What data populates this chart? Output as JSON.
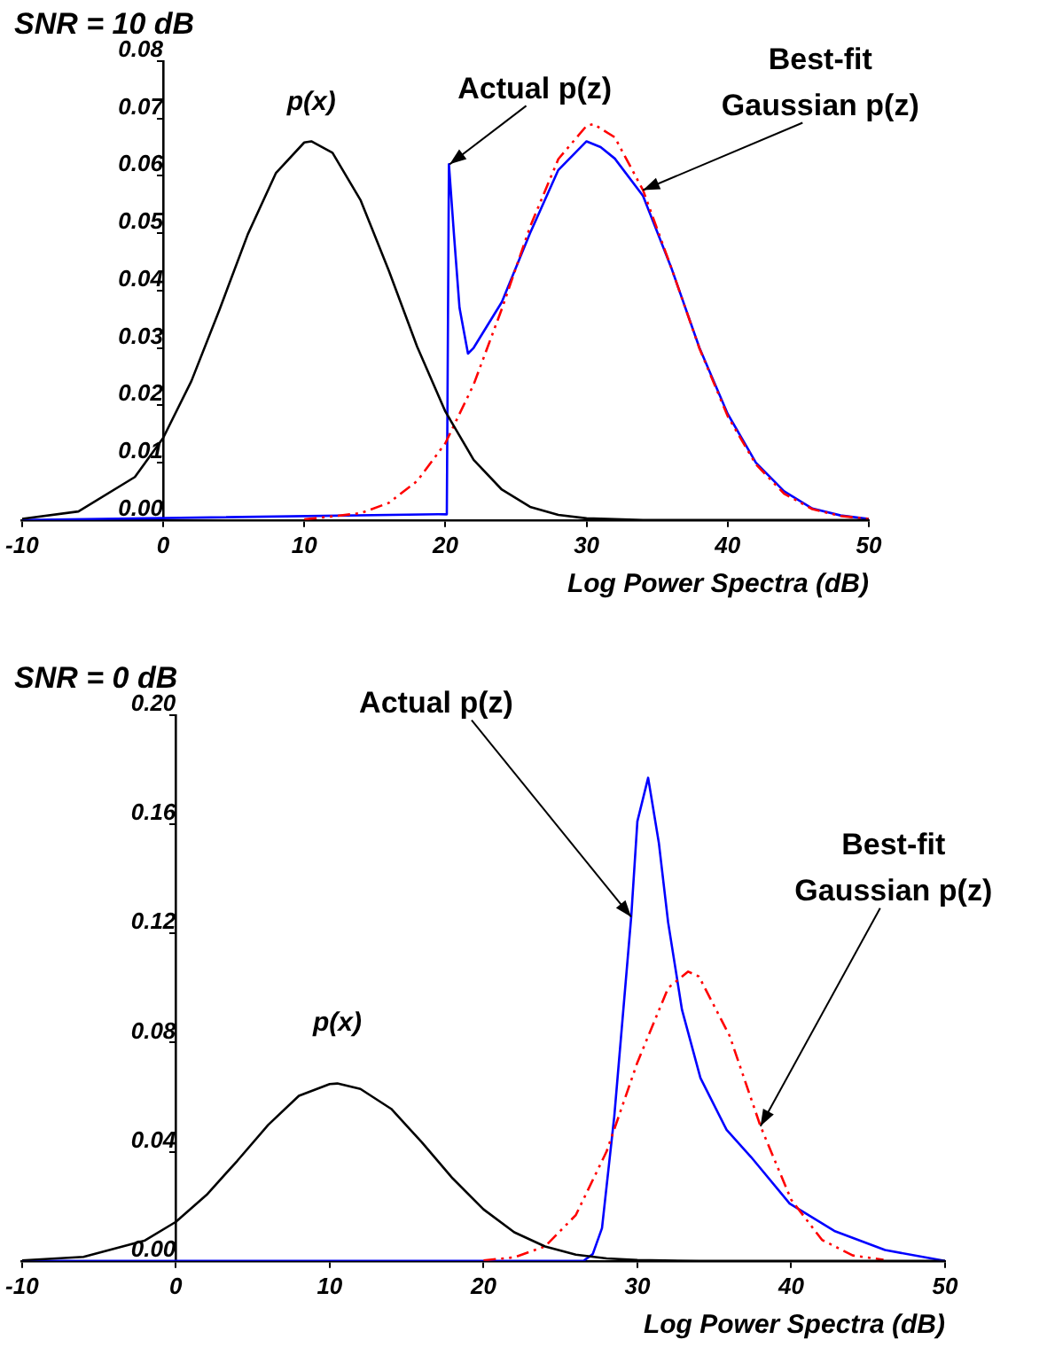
{
  "chart_data": [
    {
      "type": "line",
      "title": "SNR = 10 dB",
      "xlabel": "Log Power Spectra (dB)",
      "grid": false,
      "xlim": [
        -10,
        50
      ],
      "xticks": [
        -10,
        0,
        10,
        20,
        30,
        40,
        50
      ],
      "ylim": [
        0,
        0.08
      ],
      "yticks": [
        {
          "value": 0,
          "label": "0.00"
        },
        {
          "value": 0.01,
          "label": "0.01"
        },
        {
          "value": 0.02,
          "label": "0.02"
        },
        {
          "value": 0.03,
          "label": "0.03"
        },
        {
          "value": 0.04,
          "label": "0.04"
        },
        {
          "value": 0.05,
          "label": "0.05"
        },
        {
          "value": 0.06,
          "label": "0.06"
        },
        {
          "value": 0.07,
          "label": "0.07"
        },
        {
          "value": 0.08,
          "label": "0.08"
        }
      ],
      "series": [
        {
          "color": "#000000",
          "line_style": "solid",
          "x": [
            -10,
            -6,
            -2,
            0,
            2,
            4,
            6,
            8,
            10,
            10.5,
            12,
            14,
            16,
            18,
            20,
            22,
            24,
            26,
            28,
            30,
            34,
            50
          ],
          "values": [
            0.0002,
            0.0015,
            0.0075,
            0.0143,
            0.0242,
            0.0367,
            0.0498,
            0.0605,
            0.0658,
            0.066,
            0.064,
            0.0557,
            0.0434,
            0.0302,
            0.0189,
            0.0105,
            0.0053,
            0.0023,
            0.0009,
            0.0003,
            0,
            0
          ]
        },
        {
          "color": "#ff0000",
          "line_style": "dashed",
          "x": [
            10,
            14,
            16,
            18,
            20,
            22,
            24,
            26,
            28,
            30,
            30.5,
            32,
            34,
            36,
            38,
            40,
            42,
            44,
            46,
            48,
            50
          ],
          "values": [
            0.0001,
            0.0012,
            0.003,
            0.0068,
            0.0134,
            0.0236,
            0.0368,
            0.0511,
            0.0629,
            0.0687,
            0.069,
            0.0667,
            0.0575,
            0.044,
            0.0299,
            0.0181,
            0.0097,
            0.0046,
            0.0019,
            0.0007,
            0.0002
          ]
        },
        {
          "color": "#0000ff",
          "line_style": "solid",
          "x": [
            -10,
            19.5,
            20.1,
            20.25,
            20.6,
            21,
            21.6,
            22,
            24,
            26,
            28,
            30,
            31,
            32,
            34,
            36,
            38,
            40,
            42,
            44,
            46,
            48,
            50
          ],
          "values": [
            0,
            0.001,
            0.001,
            0.062,
            0.05,
            0.037,
            0.029,
            0.03,
            0.038,
            0.05,
            0.061,
            0.066,
            0.065,
            0.063,
            0.0565,
            0.044,
            0.03,
            0.0185,
            0.01,
            0.005,
            0.002,
            0.0008,
            0.0002
          ]
        }
      ],
      "annotations": [
        {
          "text": "p(x)",
          "x": 10.5,
          "y": 0.066
        },
        {
          "text": "Actual p(z)",
          "x": 20.3,
          "y": 0.062
        },
        {
          "text": "Best-fit\nGaussian p(z)",
          "x": 34,
          "y": 0.0575
        }
      ]
    },
    {
      "type": "line",
      "title": "SNR = 0 dB",
      "xlabel": "Log Power Spectra (dB)",
      "grid": false,
      "xlim": [
        -10,
        50
      ],
      "xticks": [
        -10,
        0,
        10,
        20,
        30,
        40,
        50
      ],
      "ylim": [
        0,
        0.2
      ],
      "yticks": [
        {
          "value": 0,
          "label": "0.00"
        },
        {
          "value": 0.04,
          "label": "0.04"
        },
        {
          "value": 0.08,
          "label": "0.08"
        },
        {
          "value": 0.12,
          "label": "0.12"
        },
        {
          "value": 0.16,
          "label": "0.16"
        },
        {
          "value": 0.2,
          "label": "0.20"
        }
      ],
      "series": [
        {
          "color": "#000000",
          "line_style": "solid",
          "x": [
            -10,
            -6,
            -2,
            0,
            2,
            4,
            6,
            8,
            10,
            10.5,
            12,
            14,
            16,
            18,
            20,
            22,
            24,
            26,
            28,
            30,
            34,
            50
          ],
          "values": [
            0.0002,
            0.0015,
            0.0075,
            0.0143,
            0.0242,
            0.0367,
            0.0498,
            0.0605,
            0.0648,
            0.065,
            0.063,
            0.0557,
            0.0434,
            0.0302,
            0.0189,
            0.0105,
            0.0053,
            0.0023,
            0.0009,
            0.0003,
            0,
            0
          ]
        },
        {
          "color": "#ff0000",
          "line_style": "dashed",
          "x": [
            20,
            22,
            24,
            26,
            28,
            30,
            32,
            33.3,
            34,
            36,
            38,
            40,
            42,
            44,
            46
          ],
          "values": [
            0.0002,
            0.0013,
            0.0053,
            0.0168,
            0.0401,
            0.0727,
            0.1,
            0.106,
            0.1042,
            0.0824,
            0.0494,
            0.0224,
            0.0077,
            0.002,
            0.0004
          ]
        },
        {
          "color": "#0000ff",
          "line_style": "solid",
          "x": [
            -10,
            26.5,
            27.1,
            27.7,
            28.5,
            29.6,
            30,
            30.7,
            31.4,
            32,
            32.9,
            34.1,
            35.8,
            37.4,
            39.9,
            42.8,
            46.1,
            50
          ],
          "values": [
            0,
            0,
            0.0025,
            0.012,
            0.053,
            0.126,
            0.161,
            0.177,
            0.153,
            0.124,
            0.092,
            0.067,
            0.048,
            0.038,
            0.021,
            0.011,
            0.004,
            0
          ]
        }
      ],
      "annotations": [
        {
          "text": "p(x)",
          "x": 10.5,
          "y": 0.065
        },
        {
          "text": "Actual p(z)",
          "x": 29.6,
          "y": 0.126
        },
        {
          "text": "Best-fit\nGaussian p(z)",
          "x": 38,
          "y": 0.0494
        }
      ]
    }
  ]
}
